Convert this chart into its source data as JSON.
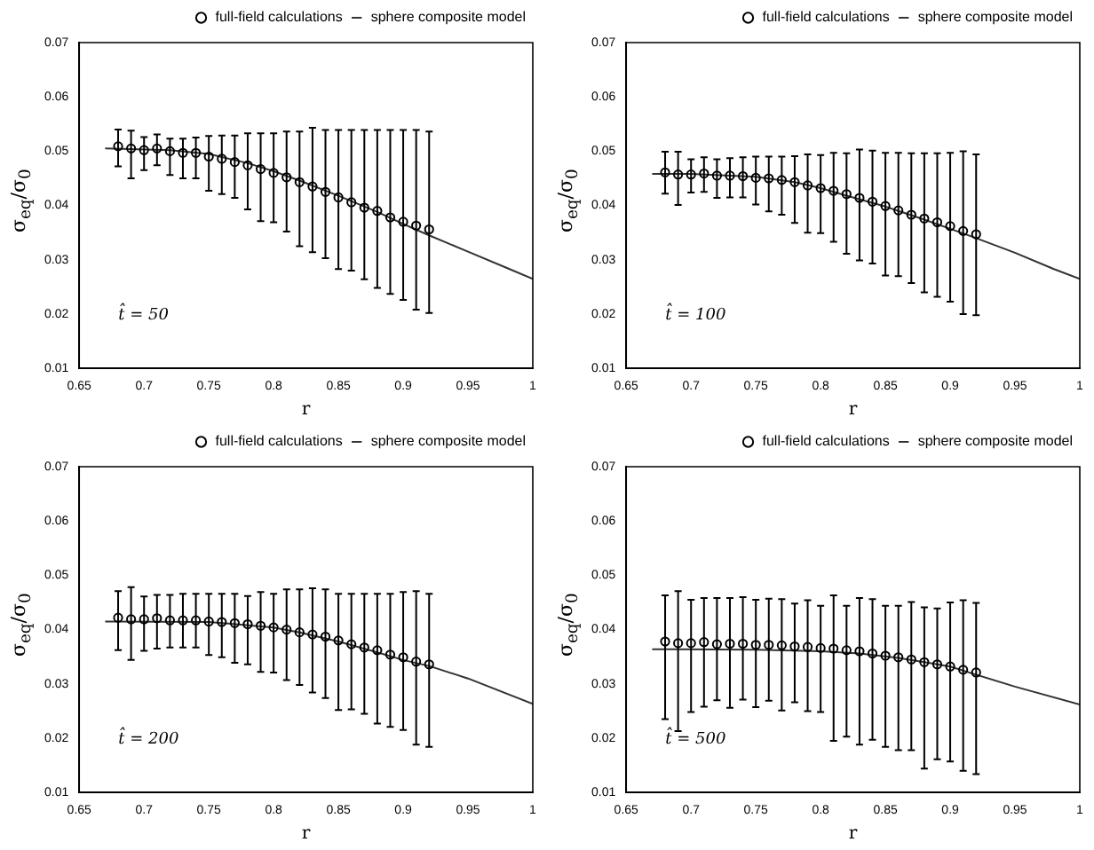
{
  "chart_data": [
    {
      "type": "scatter",
      "xlabel": "r",
      "ylabel": "σ$_{eq}$/σ$_{0}$",
      "annotations": [
        "t̂ = 50"
      ],
      "xlim": [
        0.65,
        1
      ],
      "ylim": [
        0.01,
        0.07
      ],
      "xticks": [
        0.65,
        0.7,
        0.75,
        0.8,
        0.85,
        0.9,
        0.95,
        1
      ],
      "yticks": [
        0.01,
        0.02,
        0.03,
        0.04,
        0.05,
        0.06,
        0.07
      ],
      "grid": false,
      "legend": "top right",
      "x": [
        0.68,
        0.69,
        0.7,
        0.71,
        0.72,
        0.73,
        0.74,
        0.75,
        0.76,
        0.77,
        0.78,
        0.79,
        0.8,
        0.81,
        0.82,
        0.83,
        0.84,
        0.85,
        0.86,
        0.87,
        0.88,
        0.89,
        0.9,
        0.91,
        0.92
      ],
      "series": [
        {
          "name": "full-field calculations",
          "type": "scatter",
          "marker": "circle",
          "color": "#000000",
          "values": [
            0.0509,
            0.0505,
            0.0502,
            0.0505,
            0.05,
            0.0497,
            0.0497,
            0.049,
            0.0486,
            0.048,
            0.0474,
            0.0467,
            0.046,
            0.0452,
            0.0443,
            0.0435,
            0.0425,
            0.0415,
            0.0406,
            0.0396,
            0.039,
            0.0378,
            0.037,
            0.0363,
            0.0356
          ],
          "errors": [
            [
              0.0472,
              0.054
            ],
            [
              0.045,
              0.0538
            ],
            [
              0.0465,
              0.0526
            ],
            [
              0.0474,
              0.0531
            ],
            [
              0.0456,
              0.0523
            ],
            [
              0.045,
              0.0523
            ],
            [
              0.045,
              0.0525
            ],
            [
              0.0427,
              0.0528
            ],
            [
              0.0421,
              0.0529
            ],
            [
              0.0414,
              0.0529
            ],
            [
              0.0393,
              0.0533
            ],
            [
              0.0371,
              0.0533
            ],
            [
              0.0369,
              0.0533
            ],
            [
              0.0352,
              0.0536
            ],
            [
              0.0325,
              0.0536
            ],
            [
              0.0314,
              0.0543
            ],
            [
              0.0303,
              0.0539
            ],
            [
              0.0283,
              0.0539
            ],
            [
              0.028,
              0.0539
            ],
            [
              0.0264,
              0.0539
            ],
            [
              0.0248,
              0.0539
            ],
            [
              0.0237,
              0.0539
            ],
            [
              0.0226,
              0.0539
            ],
            [
              0.0208,
              0.0539
            ],
            [
              0.0202,
              0.0536
            ]
          ]
        },
        {
          "name": "sphere composite model",
          "type": "line",
          "color": "#333333",
          "x": [
            0.67,
            0.72,
            0.75,
            0.78,
            0.8,
            0.82,
            0.85,
            0.88,
            0.9,
            0.92,
            0.95,
            0.98,
            1
          ],
          "values": [
            0.0505,
            0.0502,
            0.0495,
            0.0478,
            0.0463,
            0.0446,
            0.0418,
            0.0388,
            0.0366,
            0.0345,
            0.0315,
            0.0285,
            0.0265
          ]
        }
      ]
    },
    {
      "type": "scatter",
      "xlabel": "r",
      "ylabel": "σ$_{eq}$/σ$_{0}$",
      "annotations": [
        "t̂ = 100"
      ],
      "xlim": [
        0.65,
        1
      ],
      "ylim": [
        0.01,
        0.07
      ],
      "xticks": [
        0.65,
        0.7,
        0.75,
        0.8,
        0.85,
        0.9,
        0.95,
        1
      ],
      "yticks": [
        0.01,
        0.02,
        0.03,
        0.04,
        0.05,
        0.06,
        0.07
      ],
      "grid": false,
      "legend": "top right",
      "x": [
        0.68,
        0.69,
        0.7,
        0.71,
        0.72,
        0.73,
        0.74,
        0.75,
        0.76,
        0.77,
        0.78,
        0.79,
        0.8,
        0.81,
        0.82,
        0.83,
        0.84,
        0.85,
        0.86,
        0.87,
        0.88,
        0.89,
        0.9,
        0.91,
        0.92
      ],
      "series": [
        {
          "name": "full-field calculations",
          "type": "scatter",
          "marker": "circle",
          "color": "#000000",
          "values": [
            0.0461,
            0.0457,
            0.0457,
            0.0459,
            0.0455,
            0.0455,
            0.0454,
            0.0451,
            0.045,
            0.0447,
            0.0443,
            0.0437,
            0.0432,
            0.0427,
            0.0421,
            0.0414,
            0.0407,
            0.0399,
            0.0391,
            0.0383,
            0.0376,
            0.0369,
            0.0362,
            0.0353,
            0.0347
          ],
          "errors": [
            [
              0.0422,
              0.0499
            ],
            [
              0.0401,
              0.0499
            ],
            [
              0.0424,
              0.0485
            ],
            [
              0.0425,
              0.0489
            ],
            [
              0.0414,
              0.0485
            ],
            [
              0.0415,
              0.0487
            ],
            [
              0.0415,
              0.0489
            ],
            [
              0.0402,
              0.049
            ],
            [
              0.0389,
              0.049
            ],
            [
              0.0383,
              0.049
            ],
            [
              0.0368,
              0.0491
            ],
            [
              0.035,
              0.0494
            ],
            [
              0.0349,
              0.0493
            ],
            [
              0.0333,
              0.0497
            ],
            [
              0.0311,
              0.0496
            ],
            [
              0.0299,
              0.0503
            ],
            [
              0.0293,
              0.0501
            ],
            [
              0.0271,
              0.0497
            ],
            [
              0.027,
              0.0497
            ],
            [
              0.0257,
              0.0496
            ],
            [
              0.024,
              0.0496
            ],
            [
              0.0232,
              0.0496
            ],
            [
              0.0223,
              0.0497
            ],
            [
              0.02,
              0.05
            ],
            [
              0.0198,
              0.0494
            ]
          ]
        },
        {
          "name": "sphere composite model",
          "type": "line",
          "color": "#333333",
          "x": [
            0.67,
            0.7,
            0.75,
            0.78,
            0.8,
            0.82,
            0.85,
            0.88,
            0.9,
            0.92,
            0.95,
            0.98,
            1
          ],
          "values": [
            0.0458,
            0.0458,
            0.0453,
            0.0443,
            0.0432,
            0.0418,
            0.0398,
            0.0374,
            0.0357,
            0.034,
            0.0313,
            0.0283,
            0.0265
          ]
        }
      ]
    },
    {
      "type": "scatter",
      "xlabel": "r",
      "ylabel": "σ$_{eq}$/σ$_{0}$",
      "annotations": [
        "t̂ = 200"
      ],
      "xlim": [
        0.65,
        1
      ],
      "ylim": [
        0.01,
        0.07
      ],
      "xticks": [
        0.65,
        0.7,
        0.75,
        0.8,
        0.85,
        0.9,
        0.95,
        1
      ],
      "yticks": [
        0.01,
        0.02,
        0.03,
        0.04,
        0.05,
        0.06,
        0.07
      ],
      "grid": false,
      "legend": "top right",
      "x": [
        0.68,
        0.69,
        0.7,
        0.71,
        0.72,
        0.73,
        0.74,
        0.75,
        0.76,
        0.77,
        0.78,
        0.79,
        0.8,
        0.81,
        0.82,
        0.83,
        0.84,
        0.85,
        0.86,
        0.87,
        0.88,
        0.89,
        0.9,
        0.91,
        0.92
      ],
      "series": [
        {
          "name": "full-field calculations",
          "type": "scatter",
          "marker": "circle",
          "color": "#000000",
          "values": [
            0.0422,
            0.0419,
            0.0419,
            0.0421,
            0.0417,
            0.0417,
            0.0417,
            0.0415,
            0.0414,
            0.0412,
            0.041,
            0.0407,
            0.0404,
            0.04,
            0.0395,
            0.0391,
            0.0387,
            0.038,
            0.0373,
            0.0367,
            0.0362,
            0.0354,
            0.0349,
            0.0341,
            0.0336
          ],
          "errors": [
            [
              0.0362,
              0.0471
            ],
            [
              0.0344,
              0.0478
            ],
            [
              0.0361,
              0.0461
            ],
            [
              0.0365,
              0.0464
            ],
            [
              0.0367,
              0.0464
            ],
            [
              0.0367,
              0.0466
            ],
            [
              0.0367,
              0.0466
            ],
            [
              0.0353,
              0.0466
            ],
            [
              0.0349,
              0.0466
            ],
            [
              0.0339,
              0.0466
            ],
            [
              0.0336,
              0.0462
            ],
            [
              0.0322,
              0.0469
            ],
            [
              0.0321,
              0.0466
            ],
            [
              0.0307,
              0.0474
            ],
            [
              0.0298,
              0.0474
            ],
            [
              0.0284,
              0.0476
            ],
            [
              0.0274,
              0.0474
            ],
            [
              0.0252,
              0.0466
            ],
            [
              0.0253,
              0.0466
            ],
            [
              0.0245,
              0.0466
            ],
            [
              0.0227,
              0.0466
            ],
            [
              0.0221,
              0.0466
            ],
            [
              0.0215,
              0.0469
            ],
            [
              0.0188,
              0.0471
            ],
            [
              0.0184,
              0.0466
            ]
          ]
        },
        {
          "name": "sphere composite model",
          "type": "line",
          "color": "#333333",
          "x": [
            0.67,
            0.75,
            0.8,
            0.82,
            0.85,
            0.88,
            0.9,
            0.92,
            0.95,
            1
          ],
          "values": [
            0.0415,
            0.0414,
            0.0404,
            0.0395,
            0.0378,
            0.0358,
            0.0344,
            0.0333,
            0.031,
            0.0263
          ]
        }
      ]
    },
    {
      "type": "scatter",
      "xlabel": "r",
      "ylabel": "σ$_{eq}$/σ$_{0}$",
      "annotations": [
        "t̂ = 500"
      ],
      "xlim": [
        0.65,
        1
      ],
      "ylim": [
        0.01,
        0.07
      ],
      "xticks": [
        0.65,
        0.7,
        0.75,
        0.8,
        0.85,
        0.9,
        0.95,
        1
      ],
      "yticks": [
        0.01,
        0.02,
        0.03,
        0.04,
        0.05,
        0.06,
        0.07
      ],
      "grid": false,
      "legend": "top right",
      "x": [
        0.68,
        0.69,
        0.7,
        0.71,
        0.72,
        0.73,
        0.74,
        0.75,
        0.76,
        0.77,
        0.78,
        0.79,
        0.8,
        0.81,
        0.82,
        0.83,
        0.84,
        0.85,
        0.86,
        0.87,
        0.88,
        0.89,
        0.9,
        0.91,
        0.92
      ],
      "series": [
        {
          "name": "full-field calculations",
          "type": "scatter",
          "marker": "circle",
          "color": "#000000",
          "values": [
            0.0378,
            0.0375,
            0.0375,
            0.0377,
            0.0373,
            0.0374,
            0.0374,
            0.0372,
            0.0372,
            0.0371,
            0.0369,
            0.0368,
            0.0366,
            0.0365,
            0.0362,
            0.036,
            0.0356,
            0.0352,
            0.0349,
            0.0345,
            0.034,
            0.0336,
            0.0332,
            0.0326,
            0.0321
          ],
          "errors": [
            [
              0.0235,
              0.0463
            ],
            [
              0.0213,
              0.0471
            ],
            [
              0.0248,
              0.0455
            ],
            [
              0.0258,
              0.0458
            ],
            [
              0.027,
              0.0458
            ],
            [
              0.0256,
              0.0458
            ],
            [
              0.0271,
              0.046
            ],
            [
              0.0257,
              0.0455
            ],
            [
              0.0269,
              0.0457
            ],
            [
              0.0251,
              0.0456
            ],
            [
              0.0266,
              0.0448
            ],
            [
              0.025,
              0.0454
            ],
            [
              0.0248,
              0.0444
            ],
            [
              0.0195,
              0.0463
            ],
            [
              0.0203,
              0.0444
            ],
            [
              0.0188,
              0.0458
            ],
            [
              0.0197,
              0.0456
            ],
            [
              0.0184,
              0.0444
            ],
            [
              0.0178,
              0.0444
            ],
            [
              0.0178,
              0.0451
            ],
            [
              0.0144,
              0.0441
            ],
            [
              0.0161,
              0.0439
            ],
            [
              0.0157,
              0.045
            ],
            [
              0.014,
              0.0454
            ],
            [
              0.0134,
              0.0449
            ]
          ]
        },
        {
          "name": "sphere composite model",
          "type": "line",
          "color": "#333333",
          "x": [
            0.67,
            0.75,
            0.8,
            0.83,
            0.86,
            0.88,
            0.9,
            0.92,
            0.95,
            1
          ],
          "values": [
            0.0364,
            0.0363,
            0.036,
            0.0356,
            0.0348,
            0.034,
            0.0332,
            0.0317,
            0.0295,
            0.0262
          ]
        }
      ]
    }
  ]
}
